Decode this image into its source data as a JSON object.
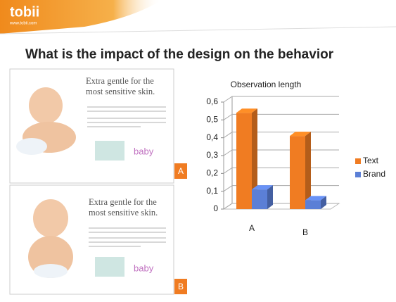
{
  "header": {
    "logo": "tobii",
    "url": "www.tobii.com",
    "title": "What is the impact of the design on the behavior"
  },
  "ads": [
    {
      "headline": "Extra gentle for the most sensitive skin.",
      "brand": "baby",
      "label": "A"
    },
    {
      "headline": "Extra gentle for the most sensitive skin.",
      "brand": "baby",
      "label": "B"
    }
  ],
  "chart_data": {
    "type": "bar",
    "title": "Observation length",
    "categories": [
      "A",
      "B"
    ],
    "series": [
      {
        "name": "Text",
        "color": "#f07c22",
        "values": [
          0.54,
          0.41
        ]
      },
      {
        "name": "Brand",
        "color": "#5b7fd6",
        "values": [
          0.11,
          0.05
        ]
      }
    ],
    "ylim": [
      0,
      0.6
    ],
    "yticks": [
      0,
      {
        "value": 0.1,
        "label": "0,1"
      },
      {
        "value": 0.2,
        "label": "0,2"
      },
      {
        "value": 0.3,
        "label": "0,3"
      },
      {
        "value": 0.4,
        "label": "0,4"
      },
      {
        "value": 0.5,
        "label": "0,5"
      },
      {
        "value": 0.6,
        "label": "0,6"
      }
    ],
    "grid": true,
    "legend": "right"
  }
}
